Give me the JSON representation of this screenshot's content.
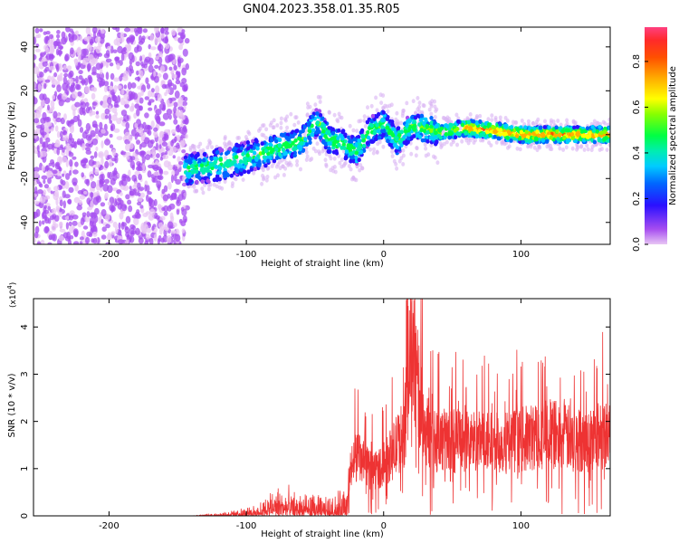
{
  "title": "GN04.2023.358.01.35.R05",
  "chart_data": [
    {
      "type": "heatmap",
      "xlabel": "Height of straight line (km)",
      "ylabel": "Frequency (Hz)",
      "xlim": [
        -255,
        165
      ],
      "ylim": [
        -50,
        49
      ],
      "xticks": [
        -200,
        -100,
        0,
        100
      ],
      "yticks": [
        -40,
        -20,
        0,
        20,
        40
      ],
      "ridge": {
        "x": [
          -145,
          -130,
          -110,
          -90,
          -75,
          -60,
          -48,
          -40,
          -30,
          -20,
          -10,
          0,
          10,
          20,
          30,
          40,
          60,
          80,
          100,
          120,
          140,
          165
        ],
        "y": [
          -16,
          -15,
          -12,
          -9,
          -6,
          -3,
          6,
          -2,
          -4,
          -8,
          2,
          5,
          -3,
          4,
          3,
          1,
          3,
          2,
          0,
          0,
          0,
          0
        ]
      },
      "colorbar": {
        "label": "Normalized spectral amplitude",
        "range": [
          0,
          0.95
        ],
        "ticks": [
          0.0,
          0.2,
          0.4,
          0.6,
          0.8
        ],
        "tick_labels": [
          "0.0",
          "0.2",
          "0.4",
          "0.6",
          "0.8"
        ]
      },
      "grid": false
    },
    {
      "type": "line",
      "xlabel": "Height of straight line (km)",
      "ylabel": "SNR (10 * v/v)",
      "yscale_label": "(x10",
      "yscale_exponent": "4",
      "yscale_close": ")",
      "xlim": [
        -255,
        165
      ],
      "ylim": [
        0,
        4.6
      ],
      "xticks": [
        -200,
        -100,
        0,
        100
      ],
      "yticks": [
        0,
        1,
        2,
        3,
        4
      ],
      "color": "#ee3333",
      "envelope": {
        "x": [
          -255,
          -140,
          -120,
          -100,
          -85,
          -80,
          -60,
          -40,
          -30,
          -25,
          -20,
          -10,
          0,
          10,
          15,
          20,
          30,
          40,
          60,
          80,
          100,
          120,
          140,
          150,
          165
        ],
        "y": [
          0.0,
          0.0,
          0.05,
          0.12,
          0.3,
          0.5,
          0.35,
          0.3,
          0.4,
          1.1,
          1.6,
          1.2,
          1.3,
          1.9,
          2.2,
          4.5,
          2.3,
          2.0,
          2.0,
          1.9,
          2.0,
          2.2,
          2.0,
          2.0,
          2.3
        ]
      },
      "grid": false
    }
  ]
}
